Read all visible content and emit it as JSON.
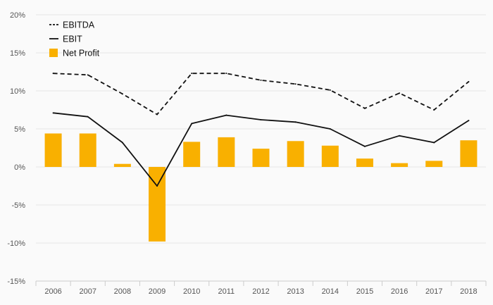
{
  "chart_data": {
    "type": "bar",
    "categories": [
      "2006",
      "2007",
      "2008",
      "2009",
      "2010",
      "2011",
      "2012",
      "2013",
      "2014",
      "2015",
      "2016",
      "2017",
      "2018"
    ],
    "series": [
      {
        "name": "EBITDA",
        "type": "line",
        "style": "dashed",
        "color": "#111111",
        "values": [
          12.3,
          12.1,
          9.6,
          6.9,
          12.3,
          12.3,
          11.4,
          10.9,
          10.1,
          7.7,
          9.7,
          7.5,
          11.2
        ]
      },
      {
        "name": "EBIT",
        "type": "line",
        "style": "solid",
        "color": "#111111",
        "values": [
          7.1,
          6.6,
          3.2,
          -2.5,
          5.7,
          6.8,
          6.2,
          5.9,
          5.0,
          2.7,
          4.1,
          3.2,
          6.1
        ]
      },
      {
        "name": "Net Profit",
        "type": "bar",
        "color": "#f9b000",
        "values": [
          4.4,
          4.4,
          0.4,
          -9.8,
          3.3,
          3.9,
          2.4,
          3.4,
          2.8,
          1.1,
          0.5,
          0.8,
          3.5
        ]
      }
    ],
    "y_ticks": [
      "20%",
      "15%",
      "10%",
      "5%",
      "0%",
      "-5%",
      "-10%",
      "-15%"
    ],
    "y_tick_values": [
      20,
      15,
      10,
      5,
      0,
      -5,
      -10,
      -15
    ],
    "ylim": [
      -15,
      20
    ],
    "grid": true,
    "legend_position": "top-left",
    "title": "",
    "xlabel": "",
    "ylabel": ""
  },
  "colors": {
    "background": "#fafafa",
    "grid": "#e6e6e6",
    "axis": "#cccccc",
    "bar": "#f9b000",
    "line": "#111111"
  }
}
